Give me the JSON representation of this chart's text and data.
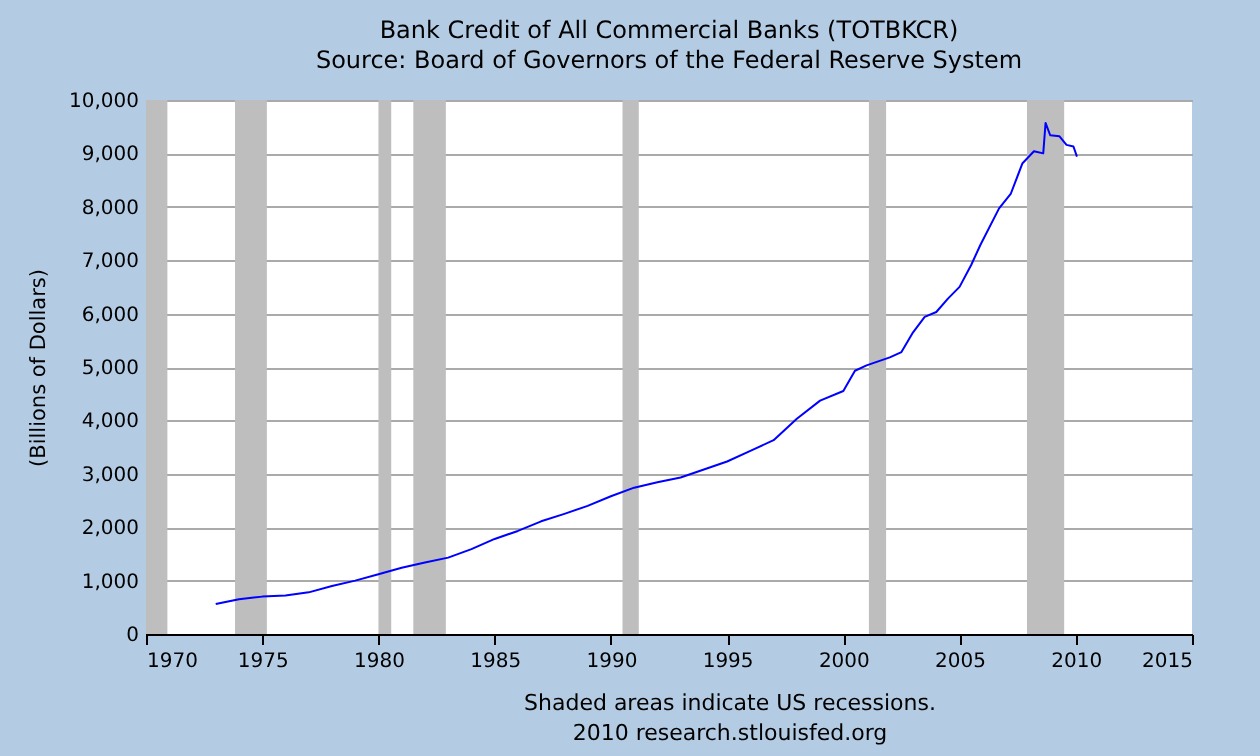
{
  "chart_data": {
    "type": "line",
    "title": "Bank Credit of All Commercial Banks (TOTBKCR)",
    "subtitle": "Source: Board of Governors of the Federal Reserve System",
    "ylabel": "(Billions of Dollars)",
    "annotations": [
      "Shaded areas indicate US recessions.",
      "2010 research.stlouisfed.org"
    ],
    "series": [
      {
        "color": "#0000ff",
        "x": [
          1973.0,
          1974,
          1975,
          1976,
          1977,
          1978,
          1979,
          1980,
          1981,
          1982,
          1983,
          1984,
          1985,
          1986,
          1987,
          1988,
          1989,
          1990,
          1991,
          1992,
          1993,
          1994,
          1995,
          1996,
          1997,
          1998,
          1999,
          2000,
          2000.5,
          2001,
          2002,
          2002.5,
          2003,
          2003.5,
          2004,
          2004.5,
          2005,
          2005.5,
          2005.9,
          2006.7,
          2007.2,
          2007.7,
          2008.2,
          2008.6,
          2008.7,
          2008.9,
          2009.3,
          2009.6,
          2009.9,
          2010.05
        ],
        "values": [
          560,
          650,
          700,
          720,
          780,
          900,
          1000,
          1120,
          1240,
          1340,
          1430,
          1590,
          1780,
          1930,
          2110,
          2250,
          2400,
          2580,
          2740,
          2840,
          2930,
          3080,
          3230,
          3430,
          3630,
          4030,
          4370,
          4550,
          4930,
          5030,
          5180,
          5280,
          5650,
          5940,
          6030,
          6280,
          6500,
          6910,
          7290,
          7970,
          8240,
          8810,
          9040,
          9000,
          9570,
          9340,
          9320,
          9160,
          9130,
          8940
        ]
      }
    ],
    "xlim": [
      1970,
      2015
    ],
    "xticks": [
      1970,
      1975,
      1980,
      1985,
      1990,
      1995,
      2000,
      2005,
      2010,
      2015
    ],
    "ylim": [
      0,
      10000
    ],
    "yticks": [
      0,
      {
        "value": 1000,
        "label": "1,000"
      },
      {
        "value": 2000,
        "label": "2,000"
      },
      {
        "value": 3000,
        "label": "3,000"
      },
      {
        "value": 4000,
        "label": "4,000"
      },
      {
        "value": 5000,
        "label": "5,000"
      },
      {
        "value": 6000,
        "label": "6,000"
      },
      {
        "value": 7000,
        "label": "7,000"
      },
      {
        "value": 8000,
        "label": "8,000"
      },
      {
        "value": 9000,
        "label": "9,000"
      },
      {
        "value": 10000,
        "label": "10,000"
      }
    ],
    "bands": [
      {
        "axis": "x",
        "from": 1970,
        "to": 1970.92,
        "color": "#bebebe"
      },
      {
        "axis": "x",
        "from": 1973.83,
        "to": 1975.2,
        "color": "#bebebe"
      },
      {
        "axis": "x",
        "from": 1980.0,
        "to": 1980.55,
        "color": "#bebebe"
      },
      {
        "axis": "x",
        "from": 1981.5,
        "to": 1982.9,
        "color": "#bebebe"
      },
      {
        "axis": "x",
        "from": 1990.5,
        "to": 1991.2,
        "color": "#bebebe"
      },
      {
        "axis": "x",
        "from": 2001.1,
        "to": 2001.84,
        "color": "#bebebe"
      },
      {
        "axis": "x",
        "from": 2007.9,
        "to": 2009.5,
        "color": "#bebebe"
      }
    ],
    "grid": "y"
  }
}
